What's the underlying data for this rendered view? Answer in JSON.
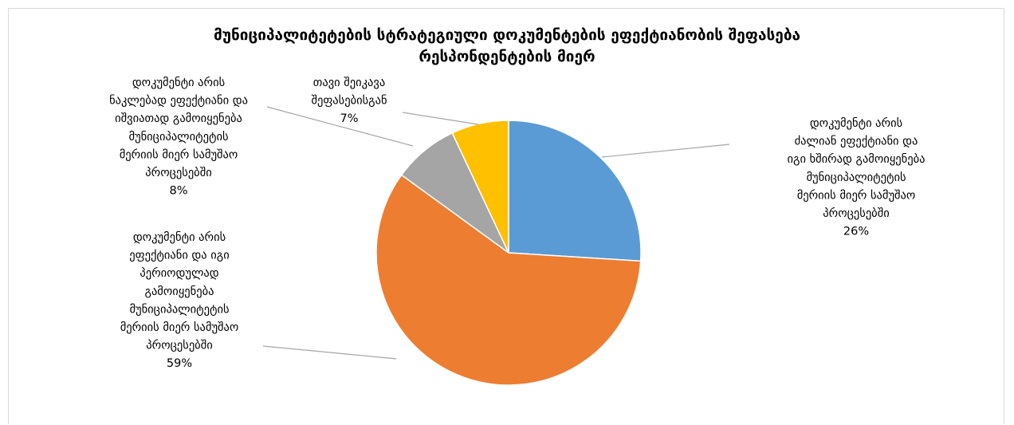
{
  "chart_data": {
    "type": "pie",
    "title": [
      "მუნიციპალიტეტების სტრატეგიული დოკუმენტების ეფექტიანობის შეფასება",
      "რესპონდენტების მიერ"
    ],
    "colors": [
      "#5b9bd5",
      "#ed7d31",
      "#a5a5a5",
      "#ffc000"
    ],
    "slices": [
      {
        "value": 26,
        "percent_label": "26%",
        "label_lines": [
          "დოკუმენტი არის",
          "ძალიან ეფექტიანი და",
          "იგი ხშირად გამოიყენება",
          "მუნიციპალიტეტის",
          "მერიის მიერ სამუშაო",
          "პროცესებში"
        ]
      },
      {
        "value": 59,
        "percent_label": "59%",
        "label_lines": [
          "დოკუმენტი არის",
          "ეფექტიანი და იგი",
          "პერიოდულად",
          "გამოიყენება",
          "მუნიციპალიტეტის",
          "მერიის მიერ სამუშაო",
          "პროცესებში"
        ]
      },
      {
        "value": 8,
        "percent_label": "8%",
        "label_lines": [
          "დოკუმენტი არის",
          "ნაკლებად ეფექტიანი და",
          "იშვიათად გამოიყენება",
          "მუნიციპალიტეტის",
          "მერიის მიერ სამუშაო",
          "პროცესებში"
        ]
      },
      {
        "value": 7,
        "percent_label": "7%",
        "label_lines": [
          "თავი შეიკავა",
          "შეფასებისგან"
        ]
      }
    ]
  }
}
